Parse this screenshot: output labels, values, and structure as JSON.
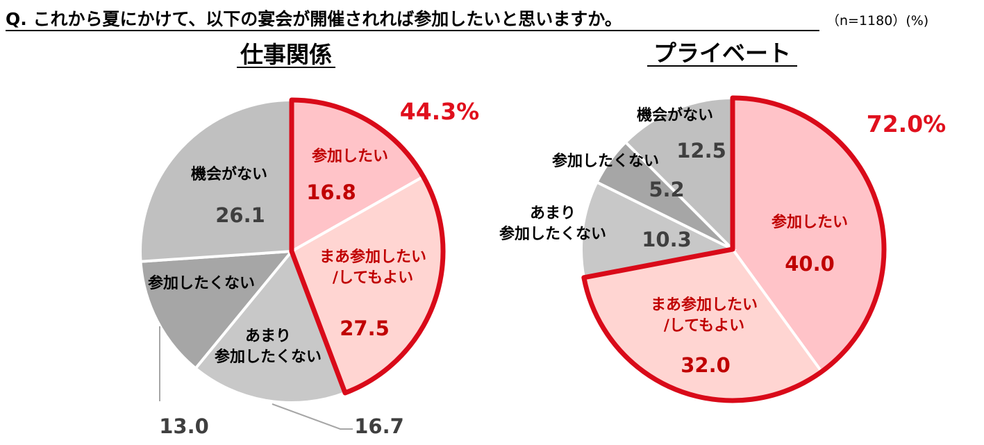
{
  "question": "Q. これから夏にかけて、以下の宴会が開催されれば参加したいと思いますか。",
  "sample_note": "（n=1180）(%)",
  "colors": {
    "accent": "#d90a19",
    "sankashitai": "#ffc3c8",
    "maa": "#ffd5d2",
    "amari": "#c8c8c8",
    "sankashitakunai": "#a6a6a6",
    "kikai": "#c0c0c0",
    "value_gray": "#3f3f3f",
    "value_red": "#c00000"
  },
  "chart_data": [
    {
      "type": "pie",
      "title": "仕事関係",
      "combined_total": "44.3%",
      "slices": [
        {
          "label": "参加したい",
          "value": 16.8
        },
        {
          "label": "まあ参加したい/してもよい",
          "label_lines": [
            "まあ参加したい",
            "/してもよい"
          ],
          "value": 27.5
        },
        {
          "label": "あまり参加したくない",
          "label_lines": [
            "あまり",
            "参加したくない"
          ],
          "value": 16.7
        },
        {
          "label": "参加したくない",
          "value": 13.0
        },
        {
          "label": "機会がない",
          "value": 26.1
        }
      ]
    },
    {
      "type": "pie",
      "title": "プライベート",
      "combined_total": "72.0%",
      "slices": [
        {
          "label": "参加したい",
          "value": 40.0
        },
        {
          "label": "まあ参加したい/してもよい",
          "label_lines": [
            "まあ参加したい",
            "/してもよい"
          ],
          "value": 32.0
        },
        {
          "label": "あまり参加したくない",
          "label_lines": [
            "あまり",
            "参加したくない"
          ],
          "value": 10.3
        },
        {
          "label": "参加したくない",
          "value": 5.2
        },
        {
          "label": "機会がない",
          "value": 12.5
        }
      ]
    }
  ]
}
